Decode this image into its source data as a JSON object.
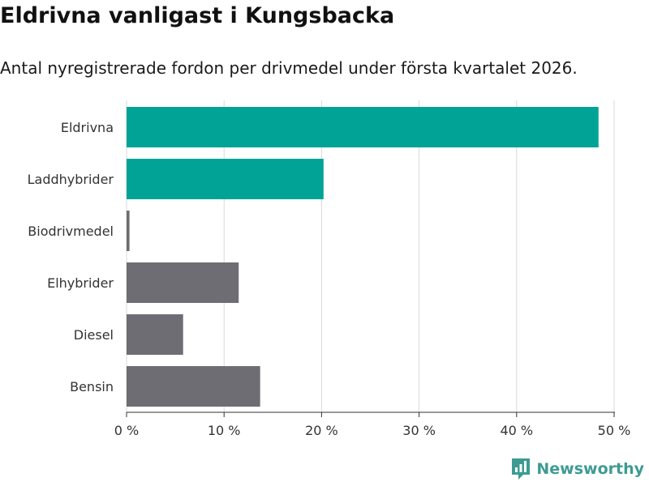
{
  "header": {
    "title": "Eldrivna vanligast i Kungsbacka",
    "subtitle": "Antal nyregistrerade fordon per drivmedel under första kvartalet 2026."
  },
  "brand": {
    "name": "Newsworthy",
    "color": "#3d9b92",
    "icon": "newsworthy-logo-icon"
  },
  "colors": {
    "highlight": "#00a396",
    "muted": "#6e6d73",
    "grid": "#d9d9d9",
    "axis": "#333333"
  },
  "chart_data": {
    "type": "bar",
    "orientation": "horizontal",
    "title": "Eldrivna vanligast i Kungsbacka",
    "subtitle": "Antal nyregistrerade fordon per drivmedel under första kvartalet 2026.",
    "xlabel": "",
    "ylabel": "",
    "categories": [
      "Eldrivna",
      "Laddhybrider",
      "Biodrivmedel",
      "Elhybrider",
      "Diesel",
      "Bensin"
    ],
    "values": [
      48.4,
      20.2,
      0.3,
      11.5,
      5.8,
      13.7
    ],
    "highlighted": [
      true,
      true,
      false,
      false,
      false,
      false
    ],
    "xlim": [
      0,
      50
    ],
    "ticks": [
      0,
      10,
      20,
      30,
      40,
      50
    ],
    "tick_labels": [
      "0 %",
      "10 %",
      "20 %",
      "30 %",
      "40 %",
      "50 %"
    ],
    "grid": true,
    "legend": "none"
  }
}
